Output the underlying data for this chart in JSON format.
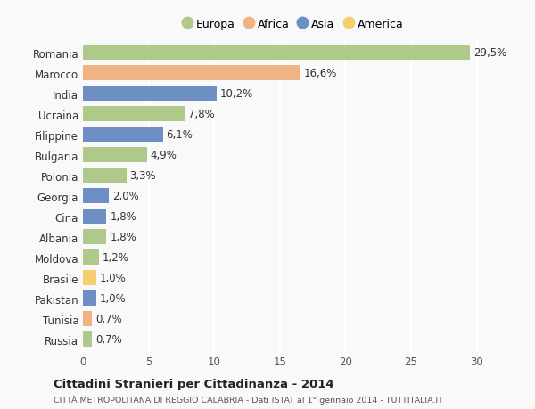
{
  "categories": [
    "Romania",
    "Marocco",
    "India",
    "Ucraina",
    "Filippine",
    "Bulgaria",
    "Polonia",
    "Georgia",
    "Cina",
    "Albania",
    "Moldova",
    "Brasile",
    "Pakistan",
    "Tunisia",
    "Russia"
  ],
  "values": [
    29.5,
    16.6,
    10.2,
    7.8,
    6.1,
    4.9,
    3.3,
    2.0,
    1.8,
    1.8,
    1.2,
    1.0,
    1.0,
    0.7,
    0.7
  ],
  "labels": [
    "29,5%",
    "16,6%",
    "10,2%",
    "7,8%",
    "6,1%",
    "4,9%",
    "3,3%",
    "2,0%",
    "1,8%",
    "1,8%",
    "1,2%",
    "1,0%",
    "1,0%",
    "0,7%",
    "0,7%"
  ],
  "colors": [
    "#aec98a",
    "#f0b484",
    "#6d8fc4",
    "#aec98a",
    "#6d8fc4",
    "#aec98a",
    "#aec98a",
    "#6d8fc4",
    "#6d8fc4",
    "#aec98a",
    "#aec98a",
    "#f5ce6e",
    "#6d8fc4",
    "#f0b484",
    "#aec98a"
  ],
  "legend_labels": [
    "Europa",
    "Africa",
    "Asia",
    "America"
  ],
  "legend_colors": [
    "#aec98a",
    "#f0b484",
    "#6d8fc4",
    "#f5ce6e"
  ],
  "title": "Cittadini Stranieri per Cittadinanza - 2014",
  "subtitle": "CITTÀ METROPOLITANA DI REGGIO CALABRIA - Dati ISTAT al 1° gennaio 2014 - TUTTITALIA.IT",
  "xlim": [
    0,
    32
  ],
  "background_color": "#f9f9f9",
  "bar_height": 0.75,
  "grid_color": "#ffffff",
  "tick_label_fontsize": 8.5,
  "value_label_fontsize": 8.5
}
